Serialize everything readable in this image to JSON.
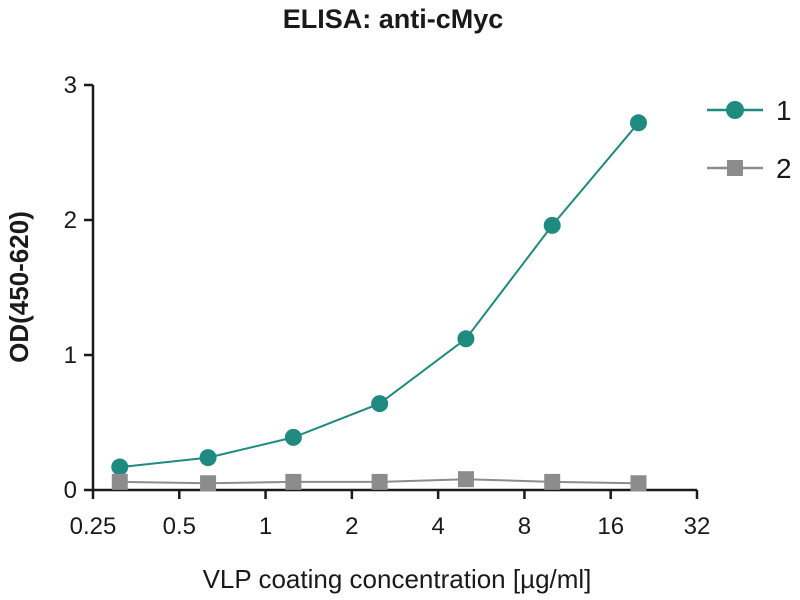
{
  "chart_data": {
    "type": "line",
    "title": "ELISA: anti-cMyc",
    "xlabel": "VLP coating concentration [µg/ml]",
    "ylabel": "OD(450-620)",
    "x_scale": "log2",
    "xlim": [
      0.25,
      32
    ],
    "ylim": [
      0,
      3
    ],
    "x_ticks": [
      0.25,
      0.5,
      1,
      2,
      4,
      8,
      16,
      32
    ],
    "x_tick_labels": [
      "0.25",
      "0.5",
      "1",
      "2",
      "4",
      "8",
      "16",
      "32"
    ],
    "y_ticks": [
      0,
      1,
      2,
      3
    ],
    "y_tick_labels": [
      "0",
      "1",
      "2",
      "3"
    ],
    "x": [
      0.31,
      0.63,
      1.25,
      2.5,
      5,
      10,
      20
    ],
    "series": [
      {
        "name": "1",
        "color": "#1f8a80",
        "marker": "circle",
        "values": [
          0.17,
          0.24,
          0.39,
          0.64,
          1.12,
          1.96,
          2.72
        ]
      },
      {
        "name": "2",
        "color": "#8c8c8c",
        "marker": "square",
        "values": [
          0.06,
          0.05,
          0.06,
          0.06,
          0.08,
          0.06,
          0.05
        ]
      }
    ],
    "grid": false,
    "legend_position": "top-right"
  }
}
